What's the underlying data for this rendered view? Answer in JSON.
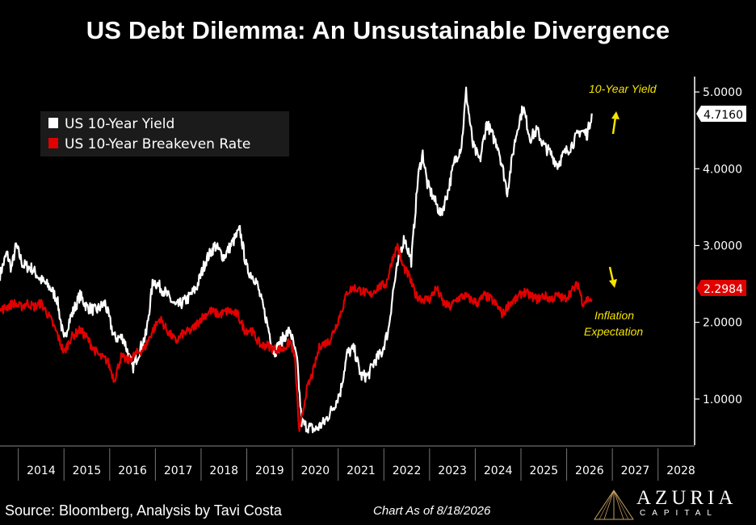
{
  "title": "US Debt Dilemma: An Unsustainable Divergence",
  "source_text": "Source: Bloomberg, Analysis by Tavi Costa",
  "date_text": "Chart As of 8/18/2026",
  "logo": {
    "name": "AZURIA",
    "sub": "CAPITAL"
  },
  "colors": {
    "background": "#000000",
    "yield": "#ffffff",
    "breakeven": "#e00000",
    "annotation": "#f5e400"
  },
  "chart_data": {
    "type": "line",
    "title": "US Debt Dilemma: An Unsustainable Divergence",
    "xlabel": "",
    "ylabel": "",
    "xlim": [
      2013.6,
      2028.8
    ],
    "ylim": [
      0.4,
      5.2
    ],
    "y_ticks": [
      "1.0000",
      "2.0000",
      "3.0000",
      "4.0000",
      "5.0000"
    ],
    "x_ticks": [
      "2014",
      "2015",
      "2016",
      "2017",
      "2018",
      "2019",
      "2020",
      "2021",
      "2022",
      "2023",
      "2024",
      "2025",
      "2026",
      "2027",
      "2028"
    ],
    "grid": false,
    "legend_position": "top-left",
    "series": [
      {
        "name": "US 10-Year Yield",
        "color": "#ffffff",
        "last_value": "4.7160",
        "points": [
          [
            2013.6,
            2.62
          ],
          [
            2013.75,
            2.9
          ],
          [
            2013.85,
            2.7
          ],
          [
            2013.95,
            3.0
          ],
          [
            2014.1,
            2.75
          ],
          [
            2014.3,
            2.7
          ],
          [
            2014.5,
            2.55
          ],
          [
            2014.7,
            2.45
          ],
          [
            2014.85,
            2.3
          ],
          [
            2015.0,
            1.75
          ],
          [
            2015.1,
            2.0
          ],
          [
            2015.35,
            2.35
          ],
          [
            2015.5,
            2.2
          ],
          [
            2015.7,
            2.15
          ],
          [
            2015.9,
            2.25
          ],
          [
            2016.1,
            1.8
          ],
          [
            2016.3,
            1.8
          ],
          [
            2016.5,
            1.4
          ],
          [
            2016.6,
            1.55
          ],
          [
            2016.8,
            1.85
          ],
          [
            2016.95,
            2.55
          ],
          [
            2017.2,
            2.4
          ],
          [
            2017.45,
            2.2
          ],
          [
            2017.7,
            2.3
          ],
          [
            2017.9,
            2.45
          ],
          [
            2018.1,
            2.8
          ],
          [
            2018.3,
            3.0
          ],
          [
            2018.5,
            2.85
          ],
          [
            2018.7,
            3.05
          ],
          [
            2018.85,
            3.2
          ],
          [
            2019.0,
            2.7
          ],
          [
            2019.2,
            2.55
          ],
          [
            2019.4,
            2.1
          ],
          [
            2019.6,
            1.6
          ],
          [
            2019.8,
            1.8
          ],
          [
            2019.95,
            1.9
          ],
          [
            2020.1,
            1.5
          ],
          [
            2020.2,
            0.7
          ],
          [
            2020.3,
            0.65
          ],
          [
            2020.5,
            0.6
          ],
          [
            2020.7,
            0.7
          ],
          [
            2020.9,
            0.9
          ],
          [
            2021.05,
            1.1
          ],
          [
            2021.2,
            1.6
          ],
          [
            2021.35,
            1.65
          ],
          [
            2021.5,
            1.3
          ],
          [
            2021.65,
            1.3
          ],
          [
            2021.8,
            1.5
          ],
          [
            2021.95,
            1.6
          ],
          [
            2022.1,
            1.9
          ],
          [
            2022.2,
            2.4
          ],
          [
            2022.35,
            2.9
          ],
          [
            2022.45,
            3.1
          ],
          [
            2022.6,
            2.8
          ],
          [
            2022.75,
            3.9
          ],
          [
            2022.85,
            4.2
          ],
          [
            2022.95,
            3.8
          ],
          [
            2023.1,
            3.6
          ],
          [
            2023.25,
            3.4
          ],
          [
            2023.4,
            3.7
          ],
          [
            2023.55,
            4.1
          ],
          [
            2023.7,
            4.3
          ],
          [
            2023.8,
            5.0
          ],
          [
            2023.95,
            4.3
          ],
          [
            2024.1,
            4.1
          ],
          [
            2024.25,
            4.6
          ],
          [
            2024.4,
            4.4
          ],
          [
            2024.5,
            4.3
          ],
          [
            2024.6,
            4.0
          ],
          [
            2024.7,
            3.7
          ],
          [
            2024.85,
            4.3
          ],
          [
            2024.95,
            4.6
          ],
          [
            2025.05,
            4.8
          ],
          [
            2025.2,
            4.4
          ],
          [
            2025.35,
            4.5
          ],
          [
            2025.5,
            4.3
          ],
          [
            2025.65,
            4.2
          ],
          [
            2025.8,
            4.05
          ],
          [
            2025.95,
            4.2
          ],
          [
            2026.1,
            4.3
          ],
          [
            2026.3,
            4.5
          ],
          [
            2026.45,
            4.45
          ],
          [
            2026.55,
            4.72
          ]
        ]
      },
      {
        "name": "US 10-Year Breakeven Rate",
        "color": "#e00000",
        "last_value": "2.2984",
        "points": [
          [
            2013.6,
            2.15
          ],
          [
            2013.75,
            2.2
          ],
          [
            2013.9,
            2.25
          ],
          [
            2014.05,
            2.2
          ],
          [
            2014.2,
            2.25
          ],
          [
            2014.35,
            2.2
          ],
          [
            2014.5,
            2.25
          ],
          [
            2014.7,
            2.05
          ],
          [
            2014.85,
            1.85
          ],
          [
            2015.0,
            1.6
          ],
          [
            2015.15,
            1.8
          ],
          [
            2015.35,
            1.9
          ],
          [
            2015.5,
            1.8
          ],
          [
            2015.65,
            1.65
          ],
          [
            2015.8,
            1.55
          ],
          [
            2015.95,
            1.5
          ],
          [
            2016.1,
            1.25
          ],
          [
            2016.25,
            1.55
          ],
          [
            2016.4,
            1.5
          ],
          [
            2016.6,
            1.6
          ],
          [
            2016.75,
            1.65
          ],
          [
            2016.95,
            1.9
          ],
          [
            2017.1,
            2.05
          ],
          [
            2017.25,
            1.9
          ],
          [
            2017.45,
            1.75
          ],
          [
            2017.6,
            1.85
          ],
          [
            2017.8,
            1.9
          ],
          [
            2018.0,
            2.05
          ],
          [
            2018.2,
            2.15
          ],
          [
            2018.4,
            2.1
          ],
          [
            2018.6,
            2.15
          ],
          [
            2018.8,
            2.1
          ],
          [
            2018.95,
            1.9
          ],
          [
            2019.1,
            1.9
          ],
          [
            2019.3,
            1.7
          ],
          [
            2019.45,
            1.7
          ],
          [
            2019.6,
            1.65
          ],
          [
            2019.8,
            1.65
          ],
          [
            2019.95,
            1.75
          ],
          [
            2020.05,
            1.55
          ],
          [
            2020.15,
            0.55
          ],
          [
            2020.3,
            1.1
          ],
          [
            2020.45,
            1.35
          ],
          [
            2020.6,
            1.7
          ],
          [
            2020.8,
            1.75
          ],
          [
            2020.95,
            1.95
          ],
          [
            2021.1,
            2.2
          ],
          [
            2021.2,
            2.4
          ],
          [
            2021.35,
            2.45
          ],
          [
            2021.55,
            2.4
          ],
          [
            2021.7,
            2.35
          ],
          [
            2021.85,
            2.45
          ],
          [
            2022.05,
            2.5
          ],
          [
            2022.2,
            2.85
          ],
          [
            2022.3,
            3.0
          ],
          [
            2022.4,
            2.75
          ],
          [
            2022.55,
            2.6
          ],
          [
            2022.7,
            2.35
          ],
          [
            2022.85,
            2.3
          ],
          [
            2023.0,
            2.3
          ],
          [
            2023.15,
            2.45
          ],
          [
            2023.3,
            2.25
          ],
          [
            2023.45,
            2.2
          ],
          [
            2023.6,
            2.3
          ],
          [
            2023.75,
            2.35
          ],
          [
            2023.9,
            2.3
          ],
          [
            2024.05,
            2.25
          ],
          [
            2024.2,
            2.35
          ],
          [
            2024.35,
            2.3
          ],
          [
            2024.5,
            2.2
          ],
          [
            2024.6,
            2.1
          ],
          [
            2024.75,
            2.25
          ],
          [
            2024.9,
            2.3
          ],
          [
            2025.05,
            2.4
          ],
          [
            2025.2,
            2.35
          ],
          [
            2025.35,
            2.3
          ],
          [
            2025.5,
            2.35
          ],
          [
            2025.65,
            2.3
          ],
          [
            2025.8,
            2.35
          ],
          [
            2025.95,
            2.3
          ],
          [
            2026.1,
            2.4
          ],
          [
            2026.25,
            2.5
          ],
          [
            2026.35,
            2.25
          ],
          [
            2026.45,
            2.3
          ],
          [
            2026.55,
            2.3
          ]
        ]
      }
    ],
    "annotations": [
      {
        "text": "10-Year Yield",
        "color": "#f5e400",
        "x": 2026.3,
        "y": 5.0,
        "arrow": "up"
      },
      {
        "text": "Inflation",
        "color": "#f5e400",
        "x": 2026.55,
        "y": 2.0
      },
      {
        "text": "Expectation",
        "color": "#f5e400",
        "x": 2026.55,
        "y": 1.8,
        "arrow": "down"
      }
    ]
  }
}
